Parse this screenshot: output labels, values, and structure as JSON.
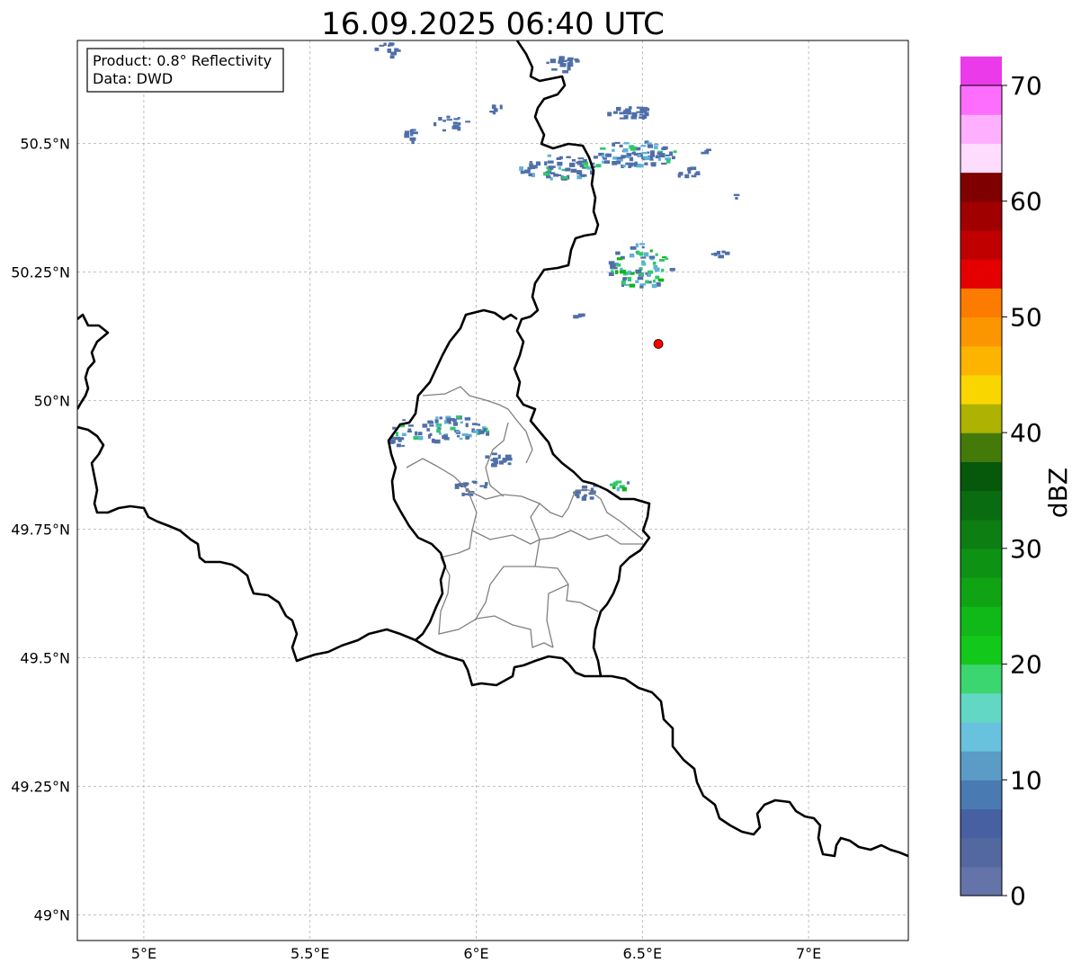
{
  "title": "16.09.2025 06:40 UTC",
  "info_box": {
    "product_line": "Product: 0.8° Reflectivity",
    "data_line": "Data: DWD"
  },
  "map": {
    "lon_range": [
      4.8,
      7.3
    ],
    "lat_range": [
      48.95,
      50.7
    ],
    "lon_ticks": [
      5.0,
      5.5,
      6.0,
      6.5,
      7.0
    ],
    "lon_tick_labels": [
      "5°E",
      "5.5°E",
      "6°E",
      "6.5°E",
      "7°E"
    ],
    "lat_ticks": [
      50.5,
      50.25,
      50.0,
      49.75,
      49.5,
      49.25,
      49.0
    ],
    "lat_tick_labels": [
      "50.5°N",
      "50.25°N",
      "50°N",
      "49.75°N",
      "49.5°N",
      "49.25°N",
      "49°N"
    ],
    "grid": true,
    "radar_site": {
      "lon": 6.548,
      "lat": 50.11,
      "color": "#ff0000"
    }
  },
  "colorbar": {
    "label": "dBZ",
    "min": 0,
    "max": 70,
    "step": 2.5,
    "tick_values": [
      0,
      10,
      20,
      30,
      40,
      50,
      60,
      70
    ],
    "tick_labels": [
      "0",
      "10",
      "20",
      "30",
      "40",
      "50",
      "60",
      "70"
    ],
    "colors": [
      "#6474a8",
      "#5468a0",
      "#4660a2",
      "#4a7ab2",
      "#5a9cc6",
      "#68c2de",
      "#62d8c4",
      "#3cd670",
      "#12c81a",
      "#10b818",
      "#10a414",
      "#0e9214",
      "#0c7e12",
      "#0a6c10",
      "#06580a",
      "#447a0a",
      "#aeb200",
      "#fad600",
      "#fcb400",
      "#fc9600",
      "#fc7c00",
      "#e40000",
      "#c00000",
      "#a00000",
      "#7e0000",
      "#fedcfe",
      "#feb0fe",
      "#fe6efe",
      "#ea3aea"
    ]
  },
  "echo_colors": {
    "low": "#4f6fa8",
    "mid": "#5fb2d8",
    "high": "#2ec86a",
    "core": "#12b21a"
  }
}
